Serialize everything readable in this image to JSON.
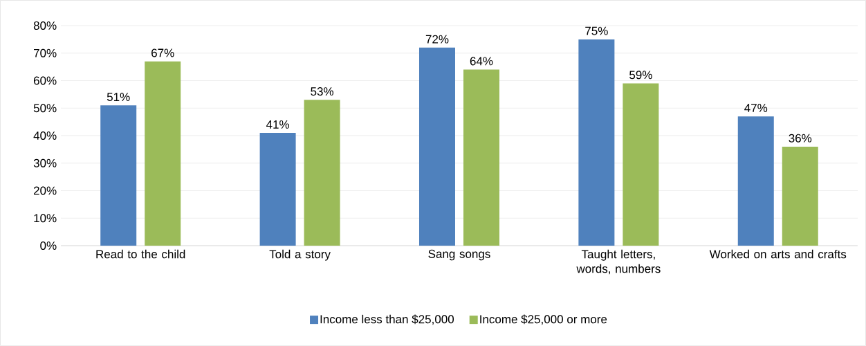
{
  "chart_data": {
    "type": "bar",
    "categories": [
      "Read to the child",
      "Told a story",
      "Sang songs",
      "Taught letters, words, numbers",
      "Worked on arts and crafts"
    ],
    "series": [
      {
        "name": "Income less than $25,000",
        "color": "#4f81bd",
        "values": [
          51,
          41,
          72,
          75,
          47
        ],
        "value_labels": [
          "51%",
          "41%",
          "72%",
          "75%",
          "47%"
        ]
      },
      {
        "name": "Income $25,000 or more",
        "color": "#9bbb59",
        "values": [
          67,
          53,
          64,
          59,
          36
        ],
        "value_labels": [
          "67%",
          "53%",
          "64%",
          "59%",
          "36%"
        ]
      }
    ],
    "ylim": [
      0,
      80
    ],
    "yticks": [
      {
        "value": 0,
        "label": "0%"
      },
      {
        "value": 10,
        "label": "10%"
      },
      {
        "value": 20,
        "label": "20%"
      },
      {
        "value": 30,
        "label": "30%"
      },
      {
        "value": 40,
        "label": "40%"
      },
      {
        "value": 50,
        "label": "50%"
      },
      {
        "value": 60,
        "label": "60%"
      },
      {
        "value": 70,
        "label": "70%"
      },
      {
        "value": 80,
        "label": "80%"
      }
    ],
    "grid": "y",
    "legend": "bottom"
  }
}
